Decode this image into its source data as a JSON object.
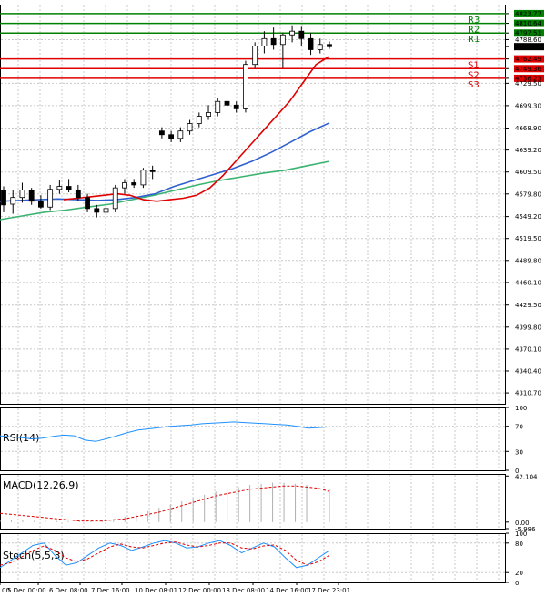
{
  "chart_data": {
    "type": "candlestick",
    "price_panel": {
      "ylim": [
        4296,
        4836
      ],
      "y_ticks": [
        "4823.77",
        "4810.64",
        "4797.51",
        "4788.60",
        "4779.08",
        "4762.49",
        "4749.36",
        "4736.23",
        "4729.50",
        "4699.30",
        "4668.90",
        "4639.20",
        "4609.50",
        "4579.80",
        "4549.20",
        "4519.50",
        "4489.80",
        "4460.10",
        "4429.50",
        "4399.80",
        "4370.10",
        "4340.40",
        "4310.70"
      ],
      "tick_values": [
        4823.77,
        4810.64,
        4797.51,
        4788.6,
        4779.08,
        4762.49,
        4749.36,
        4736.23,
        4729.5,
        4699.3,
        4668.9,
        4639.2,
        4609.5,
        4579.8,
        4549.2,
        4519.5,
        4489.8,
        4460.1,
        4429.5,
        4399.8,
        4370.1,
        4340.4,
        4310.7
      ],
      "current_price": "4779.08",
      "pivot_levels": [
        {
          "name": "R3",
          "value": 4823.77,
          "color": "#008000"
        },
        {
          "name": "R2",
          "value": 4810.64,
          "color": "#008000"
        },
        {
          "name": "R1",
          "value": 4797.51,
          "color": "#008000"
        },
        {
          "name": "S1",
          "value": 4762.49,
          "color": "#e00000"
        },
        {
          "name": "S2",
          "value": 4749.36,
          "color": "#e00000"
        },
        {
          "name": "S3",
          "value": 4736.23,
          "color": "#e00000"
        }
      ],
      "candles": [
        [
          4585,
          4590,
          4555,
          4565
        ],
        [
          4566,
          4585,
          4553,
          4575
        ],
        [
          4575,
          4595,
          4568,
          4585
        ],
        [
          4585,
          4588,
          4565,
          4570
        ],
        [
          4570,
          4578,
          4560,
          4562
        ],
        [
          4562,
          4592,
          4558,
          4586
        ],
        [
          4586,
          4598,
          4580,
          4590
        ],
        [
          4590,
          4600,
          4582,
          4585
        ],
        [
          4585,
          4592,
          4570,
          4575
        ],
        [
          4575,
          4580,
          4555,
          4560
        ],
        [
          4560,
          4565,
          4548,
          4555
        ],
        [
          4555,
          4565,
          4550,
          4560
        ],
        [
          4560,
          4592,
          4555,
          4588
        ],
        [
          4588,
          4600,
          4580,
          4595
        ],
        [
          4595,
          4600,
          4588,
          4592
        ],
        [
          4592,
          4615,
          4588,
          4612
        ],
        [
          4612,
          4618,
          4600,
          4610
        ],
        [
          4665,
          4670,
          4655,
          4660
        ],
        [
          4660,
          4665,
          4650,
          4655
        ],
        [
          4655,
          4670,
          4650,
          4665
        ],
        [
          4665,
          4680,
          4660,
          4675
        ],
        [
          4675,
          4690,
          4670,
          4685
        ],
        [
          4685,
          4700,
          4680,
          4690
        ],
        [
          4690,
          4710,
          4685,
          4705
        ],
        [
          4705,
          4712,
          4695,
          4700
        ],
        [
          4700,
          4705,
          4690,
          4695
        ],
        [
          4695,
          4760,
          4690,
          4755
        ],
        [
          4755,
          4785,
          4750,
          4780
        ],
        [
          4780,
          4800,
          4770,
          4790
        ],
        [
          4790,
          4805,
          4775,
          4782
        ],
        [
          4782,
          4798,
          4750,
          4795
        ],
        [
          4795,
          4808,
          4785,
          4800
        ],
        [
          4800,
          4806,
          4780,
          4790
        ],
        [
          4790,
          4798,
          4768,
          4775
        ],
        [
          4775,
          4790,
          4770,
          4782
        ],
        [
          4782,
          4786,
          4776,
          4779
        ]
      ],
      "ma_fast": [
        4572,
        4574,
        4576,
        4578,
        4580,
        4578,
        4572,
        4570,
        4572,
        4574,
        4578,
        4588,
        4605,
        4625,
        4645,
        4665,
        4685,
        4705,
        4730,
        4755,
        4766
      ],
      "ma_mid": [
        4570,
        4571,
        4572,
        4573,
        4572,
        4571,
        4572,
        4575,
        4580,
        4590,
        4598,
        4606,
        4614,
        4624,
        4636,
        4650,
        4664,
        4676
      ],
      "ma_slow": [
        4545,
        4550,
        4555,
        4558,
        4562,
        4566,
        4572,
        4578,
        4585,
        4592,
        4598,
        4603,
        4608,
        4612,
        4618,
        4624
      ]
    },
    "x_tick_labels": [
      "00",
      "5 Dec 00:00",
      "6 Dec 08:00",
      "7 Dec 16:00",
      "10 Dec 08:01",
      "12 Dec 00:00",
      "13 Dec 08:00",
      "14 Dec 16:00",
      "17 Dec 23:01"
    ],
    "indicators": [
      {
        "name": "RSI(14)",
        "ylim": [
          0,
          100
        ],
        "ticks": [
          "100",
          "70",
          "30",
          "0"
        ],
        "values": [
          55,
          53,
          52,
          50,
          51,
          54,
          56,
          55,
          48,
          46,
          50,
          55,
          60,
          64,
          66,
          68,
          70,
          71,
          72,
          74,
          75,
          76,
          77,
          76,
          75,
          74,
          73,
          72,
          70,
          67,
          68,
          69
        ]
      },
      {
        "name": "MACD(12,26,9)",
        "ylim": [
          -2,
          42.104
        ],
        "ticks": [
          "42.104",
          "0.00",
          "-5.986"
        ],
        "histogram": [
          2,
          2,
          2,
          1,
          1,
          1,
          1,
          1,
          1,
          2,
          3,
          5,
          7,
          10,
          13,
          16,
          19,
          22,
          25,
          28,
          30,
          32,
          34,
          35,
          36,
          36,
          35,
          34,
          32,
          30
        ],
        "signal": [
          8,
          7,
          6,
          5,
          4,
          3,
          2,
          1,
          1,
          1,
          2,
          3,
          5,
          7,
          9,
          12,
          15,
          18,
          21,
          24,
          26,
          28,
          30,
          31,
          32,
          33,
          33,
          32,
          31,
          28
        ]
      },
      {
        "name": "Stoch(5,5,3)",
        "ylim": [
          0,
          100
        ],
        "ticks": [
          "100",
          "80",
          "20",
          "0"
        ],
        "k": [
          30,
          45,
          60,
          75,
          80,
          55,
          35,
          40,
          55,
          70,
          80,
          75,
          65,
          72,
          80,
          85,
          80,
          70,
          72,
          80,
          85,
          75,
          60,
          70,
          80,
          72,
          50,
          30,
          35,
          50,
          65
        ],
        "d": [
          35,
          40,
          52,
          65,
          74,
          65,
          50,
          42,
          48,
          60,
          72,
          78,
          72,
          70,
          75,
          80,
          82,
          76,
          72,
          75,
          80,
          80,
          70,
          68,
          74,
          76,
          65,
          45,
          35,
          42,
          55
        ]
      }
    ]
  }
}
